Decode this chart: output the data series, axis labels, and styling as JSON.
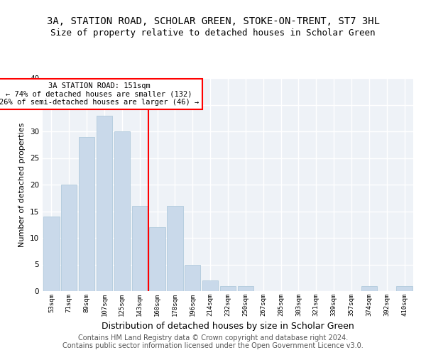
{
  "title": "3A, STATION ROAD, SCHOLAR GREEN, STOKE-ON-TRENT, ST7 3HL",
  "subtitle": "Size of property relative to detached houses in Scholar Green",
  "xlabel": "Distribution of detached houses by size in Scholar Green",
  "ylabel": "Number of detached properties",
  "bin_labels": [
    "53sqm",
    "71sqm",
    "89sqm",
    "107sqm",
    "125sqm",
    "143sqm",
    "160sqm",
    "178sqm",
    "196sqm",
    "214sqm",
    "232sqm",
    "250sqm",
    "267sqm",
    "285sqm",
    "303sqm",
    "321sqm",
    "339sqm",
    "357sqm",
    "374sqm",
    "392sqm",
    "410sqm"
  ],
  "bar_values": [
    14,
    20,
    29,
    33,
    30,
    16,
    12,
    16,
    5,
    2,
    1,
    1,
    0,
    0,
    0,
    0,
    0,
    0,
    1,
    0,
    1
  ],
  "bar_color": "#c9d9ea",
  "bar_edgecolor": "#a8c4d8",
  "annotation_text": "3A STATION ROAD: 151sqm\n← 74% of detached houses are smaller (132)\n26% of semi-detached houses are larger (46) →",
  "annotation_box_color": "white",
  "annotation_box_edgecolor": "red",
  "marker_line_color": "red",
  "ylim": [
    0,
    40
  ],
  "yticks": [
    0,
    5,
    10,
    15,
    20,
    25,
    30,
    35,
    40
  ],
  "footer_line1": "Contains HM Land Registry data © Crown copyright and database right 2024.",
  "footer_line2": "Contains public sector information licensed under the Open Government Licence v3.0.",
  "background_color": "#eef2f7",
  "grid_color": "white",
  "title_fontsize": 10,
  "subtitle_fontsize": 9,
  "xlabel_fontsize": 9,
  "ylabel_fontsize": 8,
  "footer_fontsize": 7
}
